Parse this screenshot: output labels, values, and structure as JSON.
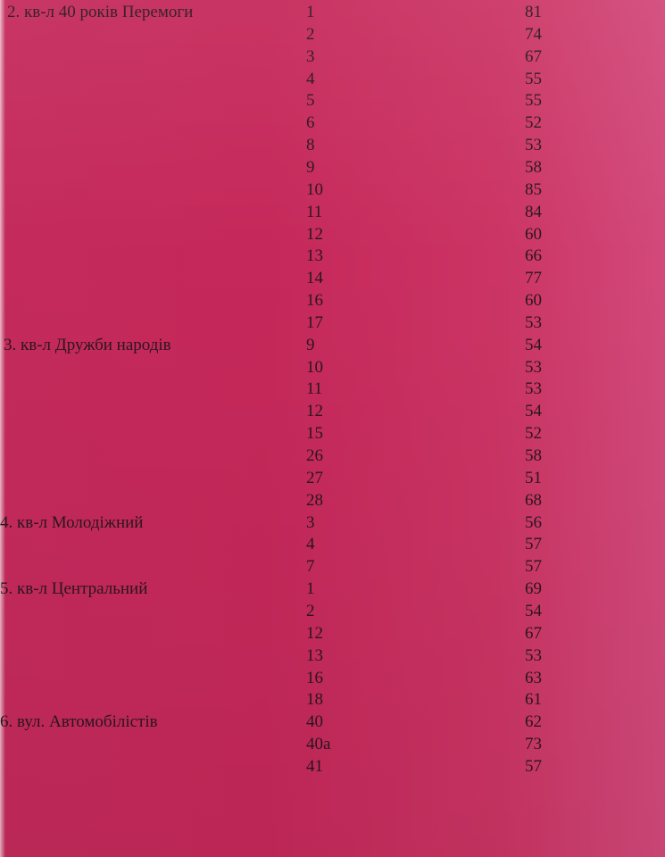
{
  "groups": [
    {
      "label": "2. кв-л 40 років Перемоги",
      "rows": [
        [
          "1",
          81
        ],
        [
          "2",
          74
        ],
        [
          "3",
          67
        ],
        [
          "4",
          55
        ],
        [
          "5",
          55
        ],
        [
          "6",
          52
        ],
        [
          "8",
          53
        ],
        [
          "9",
          58
        ],
        [
          "10",
          85
        ],
        [
          "11",
          84
        ],
        [
          "12",
          60
        ],
        [
          "13",
          66
        ],
        [
          "14",
          77
        ],
        [
          "16",
          60
        ],
        [
          "17",
          53
        ]
      ]
    },
    {
      "label": "3. кв-л Дружби народів",
      "rows": [
        [
          "9",
          54
        ],
        [
          "10",
          53
        ],
        [
          "11",
          53
        ],
        [
          "12",
          54
        ],
        [
          "15",
          52
        ],
        [
          "26",
          58
        ],
        [
          "27",
          51
        ],
        [
          "28",
          68
        ]
      ]
    },
    {
      "label": "4. кв-л Молодіжний",
      "rows": [
        [
          "3",
          56
        ],
        [
          "4",
          57
        ],
        [
          "7",
          57
        ]
      ]
    },
    {
      "label": "5. кв-л Центральний",
      "rows": [
        [
          "1",
          69
        ],
        [
          "2",
          54
        ],
        [
          "12",
          67
        ],
        [
          "13",
          53
        ],
        [
          "16",
          63
        ],
        [
          "18",
          61
        ]
      ]
    },
    {
      "label": "6. вул. Автомобілістів",
      "rows": [
        [
          "40",
          62
        ],
        [
          "40a",
          73
        ],
        [
          "41",
          57
        ]
      ]
    }
  ]
}
